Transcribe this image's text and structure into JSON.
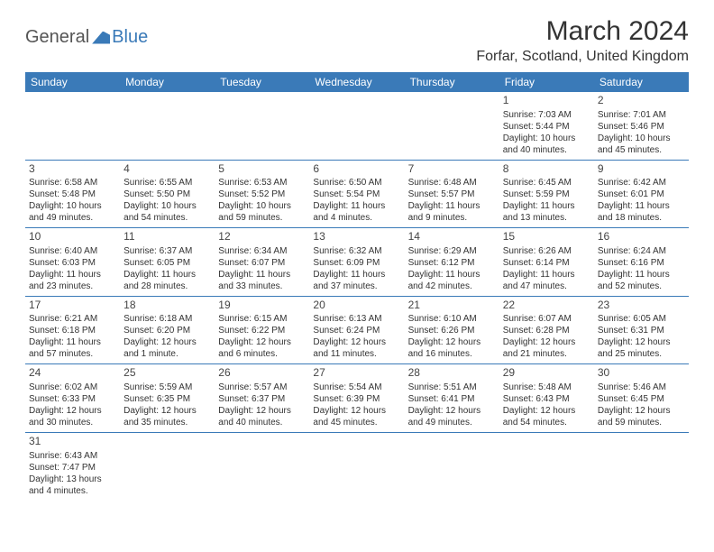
{
  "logo": {
    "general": "General",
    "blue": "Blue"
  },
  "title": "March 2024",
  "location": "Forfar, Scotland, United Kingdom",
  "colors": {
    "header_bg": "#3a7ab8",
    "header_fg": "#ffffff",
    "border": "#3a7ab8",
    "text": "#333333"
  },
  "day_headers": [
    "Sunday",
    "Monday",
    "Tuesday",
    "Wednesday",
    "Thursday",
    "Friday",
    "Saturday"
  ],
  "weeks": [
    [
      null,
      null,
      null,
      null,
      null,
      {
        "day": "1",
        "sunrise": "Sunrise: 7:03 AM",
        "sunset": "Sunset: 5:44 PM",
        "daylight1": "Daylight: 10 hours",
        "daylight2": "and 40 minutes."
      },
      {
        "day": "2",
        "sunrise": "Sunrise: 7:01 AM",
        "sunset": "Sunset: 5:46 PM",
        "daylight1": "Daylight: 10 hours",
        "daylight2": "and 45 minutes."
      }
    ],
    [
      {
        "day": "3",
        "sunrise": "Sunrise: 6:58 AM",
        "sunset": "Sunset: 5:48 PM",
        "daylight1": "Daylight: 10 hours",
        "daylight2": "and 49 minutes."
      },
      {
        "day": "4",
        "sunrise": "Sunrise: 6:55 AM",
        "sunset": "Sunset: 5:50 PM",
        "daylight1": "Daylight: 10 hours",
        "daylight2": "and 54 minutes."
      },
      {
        "day": "5",
        "sunrise": "Sunrise: 6:53 AM",
        "sunset": "Sunset: 5:52 PM",
        "daylight1": "Daylight: 10 hours",
        "daylight2": "and 59 minutes."
      },
      {
        "day": "6",
        "sunrise": "Sunrise: 6:50 AM",
        "sunset": "Sunset: 5:54 PM",
        "daylight1": "Daylight: 11 hours",
        "daylight2": "and 4 minutes."
      },
      {
        "day": "7",
        "sunrise": "Sunrise: 6:48 AM",
        "sunset": "Sunset: 5:57 PM",
        "daylight1": "Daylight: 11 hours",
        "daylight2": "and 9 minutes."
      },
      {
        "day": "8",
        "sunrise": "Sunrise: 6:45 AM",
        "sunset": "Sunset: 5:59 PM",
        "daylight1": "Daylight: 11 hours",
        "daylight2": "and 13 minutes."
      },
      {
        "day": "9",
        "sunrise": "Sunrise: 6:42 AM",
        "sunset": "Sunset: 6:01 PM",
        "daylight1": "Daylight: 11 hours",
        "daylight2": "and 18 minutes."
      }
    ],
    [
      {
        "day": "10",
        "sunrise": "Sunrise: 6:40 AM",
        "sunset": "Sunset: 6:03 PM",
        "daylight1": "Daylight: 11 hours",
        "daylight2": "and 23 minutes."
      },
      {
        "day": "11",
        "sunrise": "Sunrise: 6:37 AM",
        "sunset": "Sunset: 6:05 PM",
        "daylight1": "Daylight: 11 hours",
        "daylight2": "and 28 minutes."
      },
      {
        "day": "12",
        "sunrise": "Sunrise: 6:34 AM",
        "sunset": "Sunset: 6:07 PM",
        "daylight1": "Daylight: 11 hours",
        "daylight2": "and 33 minutes."
      },
      {
        "day": "13",
        "sunrise": "Sunrise: 6:32 AM",
        "sunset": "Sunset: 6:09 PM",
        "daylight1": "Daylight: 11 hours",
        "daylight2": "and 37 minutes."
      },
      {
        "day": "14",
        "sunrise": "Sunrise: 6:29 AM",
        "sunset": "Sunset: 6:12 PM",
        "daylight1": "Daylight: 11 hours",
        "daylight2": "and 42 minutes."
      },
      {
        "day": "15",
        "sunrise": "Sunrise: 6:26 AM",
        "sunset": "Sunset: 6:14 PM",
        "daylight1": "Daylight: 11 hours",
        "daylight2": "and 47 minutes."
      },
      {
        "day": "16",
        "sunrise": "Sunrise: 6:24 AM",
        "sunset": "Sunset: 6:16 PM",
        "daylight1": "Daylight: 11 hours",
        "daylight2": "and 52 minutes."
      }
    ],
    [
      {
        "day": "17",
        "sunrise": "Sunrise: 6:21 AM",
        "sunset": "Sunset: 6:18 PM",
        "daylight1": "Daylight: 11 hours",
        "daylight2": "and 57 minutes."
      },
      {
        "day": "18",
        "sunrise": "Sunrise: 6:18 AM",
        "sunset": "Sunset: 6:20 PM",
        "daylight1": "Daylight: 12 hours",
        "daylight2": "and 1 minute."
      },
      {
        "day": "19",
        "sunrise": "Sunrise: 6:15 AM",
        "sunset": "Sunset: 6:22 PM",
        "daylight1": "Daylight: 12 hours",
        "daylight2": "and 6 minutes."
      },
      {
        "day": "20",
        "sunrise": "Sunrise: 6:13 AM",
        "sunset": "Sunset: 6:24 PM",
        "daylight1": "Daylight: 12 hours",
        "daylight2": "and 11 minutes."
      },
      {
        "day": "21",
        "sunrise": "Sunrise: 6:10 AM",
        "sunset": "Sunset: 6:26 PM",
        "daylight1": "Daylight: 12 hours",
        "daylight2": "and 16 minutes."
      },
      {
        "day": "22",
        "sunrise": "Sunrise: 6:07 AM",
        "sunset": "Sunset: 6:28 PM",
        "daylight1": "Daylight: 12 hours",
        "daylight2": "and 21 minutes."
      },
      {
        "day": "23",
        "sunrise": "Sunrise: 6:05 AM",
        "sunset": "Sunset: 6:31 PM",
        "daylight1": "Daylight: 12 hours",
        "daylight2": "and 25 minutes."
      }
    ],
    [
      {
        "day": "24",
        "sunrise": "Sunrise: 6:02 AM",
        "sunset": "Sunset: 6:33 PM",
        "daylight1": "Daylight: 12 hours",
        "daylight2": "and 30 minutes."
      },
      {
        "day": "25",
        "sunrise": "Sunrise: 5:59 AM",
        "sunset": "Sunset: 6:35 PM",
        "daylight1": "Daylight: 12 hours",
        "daylight2": "and 35 minutes."
      },
      {
        "day": "26",
        "sunrise": "Sunrise: 5:57 AM",
        "sunset": "Sunset: 6:37 PM",
        "daylight1": "Daylight: 12 hours",
        "daylight2": "and 40 minutes."
      },
      {
        "day": "27",
        "sunrise": "Sunrise: 5:54 AM",
        "sunset": "Sunset: 6:39 PM",
        "daylight1": "Daylight: 12 hours",
        "daylight2": "and 45 minutes."
      },
      {
        "day": "28",
        "sunrise": "Sunrise: 5:51 AM",
        "sunset": "Sunset: 6:41 PM",
        "daylight1": "Daylight: 12 hours",
        "daylight2": "and 49 minutes."
      },
      {
        "day": "29",
        "sunrise": "Sunrise: 5:48 AM",
        "sunset": "Sunset: 6:43 PM",
        "daylight1": "Daylight: 12 hours",
        "daylight2": "and 54 minutes."
      },
      {
        "day": "30",
        "sunrise": "Sunrise: 5:46 AM",
        "sunset": "Sunset: 6:45 PM",
        "daylight1": "Daylight: 12 hours",
        "daylight2": "and 59 minutes."
      }
    ],
    [
      {
        "day": "31",
        "sunrise": "Sunrise: 6:43 AM",
        "sunset": "Sunset: 7:47 PM",
        "daylight1": "Daylight: 13 hours",
        "daylight2": "and 4 minutes."
      },
      null,
      null,
      null,
      null,
      null,
      null
    ]
  ]
}
